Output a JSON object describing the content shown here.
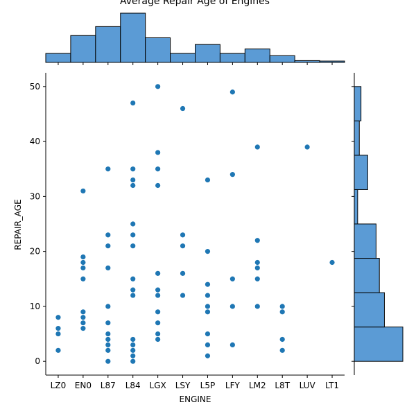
{
  "chart_data": {
    "type": "scatter",
    "title": "Average Repair Age of Engines",
    "xlabel": "ENGINE",
    "ylabel": "REPAIR_AGE",
    "categories": [
      "LZ0",
      "EN0",
      "L87",
      "L84",
      "LGX",
      "LSY",
      "L5P",
      "LFY",
      "LM2",
      "L8T",
      "LUV",
      "LT1"
    ],
    "ylim": [
      -2.5,
      52.5
    ],
    "yticks": [
      0,
      10,
      20,
      30,
      40,
      50
    ],
    "grid": false,
    "marginal_x": {
      "type": "histogram",
      "values": [
        2,
        6,
        8,
        11,
        5.5,
        2,
        4,
        2,
        3,
        1.5,
        0.4,
        0.3
      ]
    },
    "marginal_y": {
      "type": "histogram",
      "bin_edges": [
        0,
        6.25,
        12.5,
        18.75,
        25,
        31.25,
        37.5,
        43.75,
        50
      ],
      "counts": [
        29,
        18,
        15,
        13,
        2,
        8,
        3,
        4
      ]
    },
    "series": [
      {
        "values": [
          {
            "x": "LZ0",
            "y": 8
          },
          {
            "x": "LZ0",
            "y": 6
          },
          {
            "x": "LZ0",
            "y": 5
          },
          {
            "x": "LZ0",
            "y": 2
          },
          {
            "x": "EN0",
            "y": 31
          },
          {
            "x": "EN0",
            "y": 19
          },
          {
            "x": "EN0",
            "y": 18
          },
          {
            "x": "EN0",
            "y": 17
          },
          {
            "x": "EN0",
            "y": 15
          },
          {
            "x": "EN0",
            "y": 9
          },
          {
            "x": "EN0",
            "y": 8
          },
          {
            "x": "EN0",
            "y": 7
          },
          {
            "x": "EN0",
            "y": 6
          },
          {
            "x": "L87",
            "y": 35
          },
          {
            "x": "L87",
            "y": 23
          },
          {
            "x": "L87",
            "y": 21
          },
          {
            "x": "L87",
            "y": 17
          },
          {
            "x": "L87",
            "y": 10
          },
          {
            "x": "L87",
            "y": 7
          },
          {
            "x": "L87",
            "y": 5
          },
          {
            "x": "L87",
            "y": 4
          },
          {
            "x": "L87",
            "y": 3
          },
          {
            "x": "L87",
            "y": 2
          },
          {
            "x": "L87",
            "y": 0
          },
          {
            "x": "L84",
            "y": 47
          },
          {
            "x": "L84",
            "y": 35
          },
          {
            "x": "L84",
            "y": 33
          },
          {
            "x": "L84",
            "y": 32
          },
          {
            "x": "L84",
            "y": 25
          },
          {
            "x": "L84",
            "y": 23
          },
          {
            "x": "L84",
            "y": 21
          },
          {
            "x": "L84",
            "y": 15
          },
          {
            "x": "L84",
            "y": 13
          },
          {
            "x": "L84",
            "y": 12
          },
          {
            "x": "L84",
            "y": 4
          },
          {
            "x": "L84",
            "y": 3
          },
          {
            "x": "L84",
            "y": 2
          },
          {
            "x": "L84",
            "y": 1
          },
          {
            "x": "L84",
            "y": 0
          },
          {
            "x": "LGX",
            "y": 50
          },
          {
            "x": "LGX",
            "y": 38
          },
          {
            "x": "LGX",
            "y": 35
          },
          {
            "x": "LGX",
            "y": 32
          },
          {
            "x": "LGX",
            "y": 16
          },
          {
            "x": "LGX",
            "y": 13
          },
          {
            "x": "LGX",
            "y": 12
          },
          {
            "x": "LGX",
            "y": 9
          },
          {
            "x": "LGX",
            "y": 7
          },
          {
            "x": "LGX",
            "y": 5
          },
          {
            "x": "LGX",
            "y": 4
          },
          {
            "x": "LSY",
            "y": 46
          },
          {
            "x": "LSY",
            "y": 23
          },
          {
            "x": "LSY",
            "y": 21
          },
          {
            "x": "LSY",
            "y": 16
          },
          {
            "x": "LSY",
            "y": 12
          },
          {
            "x": "L5P",
            "y": 33
          },
          {
            "x": "L5P",
            "y": 20
          },
          {
            "x": "L5P",
            "y": 14
          },
          {
            "x": "L5P",
            "y": 12
          },
          {
            "x": "L5P",
            "y": 10
          },
          {
            "x": "L5P",
            "y": 9
          },
          {
            "x": "L5P",
            "y": 5
          },
          {
            "x": "L5P",
            "y": 3
          },
          {
            "x": "L5P",
            "y": 1
          },
          {
            "x": "LFY",
            "y": 49
          },
          {
            "x": "LFY",
            "y": 34
          },
          {
            "x": "LFY",
            "y": 15
          },
          {
            "x": "LFY",
            "y": 10
          },
          {
            "x": "LFY",
            "y": 3
          },
          {
            "x": "LM2",
            "y": 39
          },
          {
            "x": "LM2",
            "y": 22
          },
          {
            "x": "LM2",
            "y": 18
          },
          {
            "x": "LM2",
            "y": 17
          },
          {
            "x": "LM2",
            "y": 15
          },
          {
            "x": "LM2",
            "y": 10
          },
          {
            "x": "L8T",
            "y": 10
          },
          {
            "x": "L8T",
            "y": 9
          },
          {
            "x": "L8T",
            "y": 4
          },
          {
            "x": "L8T",
            "y": 2
          },
          {
            "x": "LUV",
            "y": 39
          },
          {
            "x": "LT1",
            "y": 18
          }
        ]
      }
    ],
    "colors": {
      "points": "#1f77b4",
      "hist_fill": "#5b9bd5",
      "hist_edge": "#000000",
      "axis": "#000000"
    }
  }
}
